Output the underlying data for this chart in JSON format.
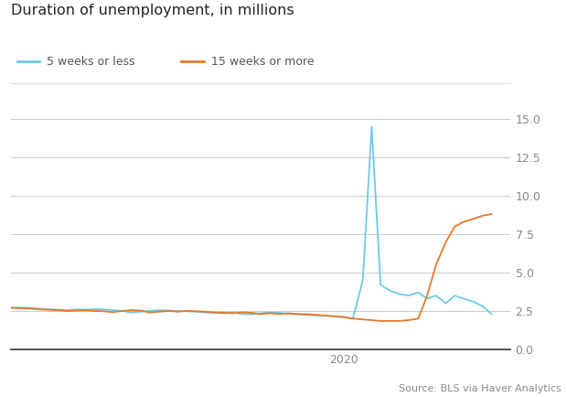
{
  "title": "Duration of unemployment, in millions",
  "source": "Source: BLS via Haver Analytics",
  "legend": [
    "5 weeks or less",
    "15 weeks or more"
  ],
  "line1_color": "#6BCAE8",
  "line2_color": "#E87722",
  "ylim": [
    0,
    15.5
  ],
  "yticks": [
    0,
    2.5,
    5.0,
    7.5,
    10.0,
    12.5,
    15.0
  ],
  "xlabel": "2020",
  "background_color": "#ffffff",
  "short_term": {
    "x": [
      2017.0,
      2017.08,
      2017.17,
      2017.25,
      2017.33,
      2017.42,
      2017.5,
      2017.58,
      2017.67,
      2017.75,
      2017.83,
      2017.92,
      2018.0,
      2018.08,
      2018.17,
      2018.25,
      2018.33,
      2018.42,
      2018.5,
      2018.58,
      2018.67,
      2018.75,
      2018.83,
      2018.92,
      2019.0,
      2019.08,
      2019.17,
      2019.25,
      2019.33,
      2019.42,
      2019.5,
      2019.58,
      2019.67,
      2019.75,
      2019.83,
      2019.92,
      2020.0,
      2020.08,
      2020.17,
      2020.25,
      2020.33,
      2020.42,
      2020.5,
      2020.58,
      2020.67,
      2020.75,
      2020.83,
      2020.92,
      2021.0,
      2021.08,
      2021.17,
      2021.25,
      2021.33
    ],
    "y": [
      2.7,
      2.72,
      2.7,
      2.65,
      2.6,
      2.58,
      2.55,
      2.6,
      2.58,
      2.62,
      2.6,
      2.55,
      2.5,
      2.4,
      2.45,
      2.5,
      2.55,
      2.52,
      2.5,
      2.48,
      2.45,
      2.4,
      2.38,
      2.35,
      2.4,
      2.3,
      2.28,
      2.35,
      2.4,
      2.38,
      2.3,
      2.28,
      2.25,
      2.2,
      2.18,
      2.15,
      2.1,
      2.0,
      4.5,
      14.5,
      4.2,
      3.8,
      3.6,
      3.5,
      3.7,
      3.3,
      3.5,
      3.0,
      3.5,
      3.3,
      3.1,
      2.8,
      2.3
    ]
  },
  "long_term": {
    "x": [
      2017.0,
      2017.08,
      2017.17,
      2017.25,
      2017.33,
      2017.42,
      2017.5,
      2017.58,
      2017.67,
      2017.75,
      2017.83,
      2017.92,
      2018.0,
      2018.08,
      2018.17,
      2018.25,
      2018.33,
      2018.42,
      2018.5,
      2018.58,
      2018.67,
      2018.75,
      2018.83,
      2018.92,
      2019.0,
      2019.08,
      2019.17,
      2019.25,
      2019.33,
      2019.42,
      2019.5,
      2019.58,
      2019.67,
      2019.75,
      2019.83,
      2019.92,
      2020.0,
      2020.08,
      2020.17,
      2020.25,
      2020.33,
      2020.42,
      2020.5,
      2020.58,
      2020.67,
      2020.75,
      2020.83,
      2020.92,
      2021.0,
      2021.08,
      2021.17,
      2021.25,
      2021.33
    ],
    "y": [
      2.7,
      2.68,
      2.65,
      2.6,
      2.58,
      2.55,
      2.5,
      2.52,
      2.55,
      2.5,
      2.48,
      2.42,
      2.5,
      2.55,
      2.52,
      2.4,
      2.45,
      2.5,
      2.45,
      2.5,
      2.48,
      2.45,
      2.4,
      2.38,
      2.35,
      2.4,
      2.38,
      2.3,
      2.35,
      2.3,
      2.35,
      2.3,
      2.28,
      2.25,
      2.2,
      2.15,
      2.1,
      2.0,
      1.95,
      1.9,
      1.85,
      1.85,
      1.85,
      1.9,
      2.0,
      3.5,
      5.5,
      7.0,
      8.0,
      8.3,
      8.5,
      8.7,
      8.8
    ]
  }
}
